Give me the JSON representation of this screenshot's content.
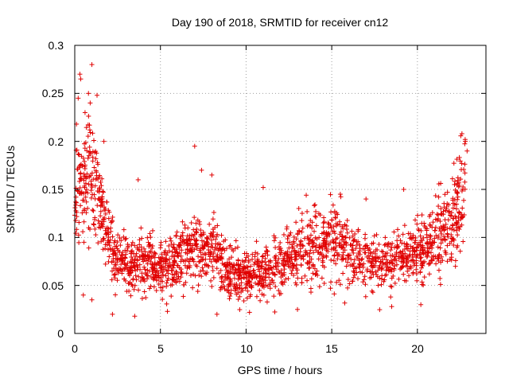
{
  "chart_data": {
    "type": "scatter",
    "title": "Day 190 of 2018, SRMTID for receiver cn12",
    "xlabel": "GPS time / hours",
    "ylabel": "SRMTID / TECUs",
    "xlim": [
      0,
      24
    ],
    "ylim": [
      0,
      0.3
    ],
    "xticks": [
      0,
      5,
      10,
      15,
      20
    ],
    "yticks": [
      0,
      0.05,
      0.1,
      0.15,
      0.2,
      0.25,
      0.3
    ],
    "xtick_labels": [
      "0",
      "5",
      "10",
      "15",
      "20"
    ],
    "ytick_labels": [
      "0",
      "0.05",
      "0.1",
      "0.15",
      "0.2",
      "0.25",
      "0.3"
    ],
    "grid": true,
    "marker": "+",
    "color": "#e00000",
    "series": [
      {
        "name": "SRMTID cn12",
        "profile": [
          {
            "x": 0.0,
            "y": 0.135
          },
          {
            "x": 0.5,
            "y": 0.16
          },
          {
            "x": 1.0,
            "y": 0.165
          },
          {
            "x": 1.5,
            "y": 0.13
          },
          {
            "x": 2.0,
            "y": 0.1
          },
          {
            "x": 2.5,
            "y": 0.075
          },
          {
            "x": 3.0,
            "y": 0.07
          },
          {
            "x": 4.0,
            "y": 0.075
          },
          {
            "x": 5.0,
            "y": 0.065
          },
          {
            "x": 6.0,
            "y": 0.075
          },
          {
            "x": 7.0,
            "y": 0.09
          },
          {
            "x": 8.0,
            "y": 0.09
          },
          {
            "x": 9.0,
            "y": 0.065
          },
          {
            "x": 10.0,
            "y": 0.06
          },
          {
            "x": 11.0,
            "y": 0.065
          },
          {
            "x": 12.0,
            "y": 0.07
          },
          {
            "x": 13.0,
            "y": 0.08
          },
          {
            "x": 14.0,
            "y": 0.09
          },
          {
            "x": 15.0,
            "y": 0.1
          },
          {
            "x": 16.0,
            "y": 0.085
          },
          {
            "x": 17.0,
            "y": 0.075
          },
          {
            "x": 18.0,
            "y": 0.075
          },
          {
            "x": 19.0,
            "y": 0.08
          },
          {
            "x": 20.0,
            "y": 0.085
          },
          {
            "x": 21.0,
            "y": 0.095
          },
          {
            "x": 22.0,
            "y": 0.12
          },
          {
            "x": 22.8,
            "y": 0.145
          }
        ],
        "points": [
          {
            "x": 1.0,
            "y": 0.28
          },
          {
            "x": 0.3,
            "y": 0.27
          },
          {
            "x": 0.35,
            "y": 0.265
          },
          {
            "x": 0.8,
            "y": 0.25
          },
          {
            "x": 1.3,
            "y": 0.248
          },
          {
            "x": 0.2,
            "y": 0.245
          },
          {
            "x": 0.9,
            "y": 0.24
          },
          {
            "x": 0.6,
            "y": 0.23
          },
          {
            "x": 0.1,
            "y": 0.218
          },
          {
            "x": 1.7,
            "y": 0.2
          },
          {
            "x": 7.0,
            "y": 0.195
          },
          {
            "x": 22.6,
            "y": 0.208
          },
          {
            "x": 22.8,
            "y": 0.2
          },
          {
            "x": 22.9,
            "y": 0.19
          },
          {
            "x": 7.4,
            "y": 0.17
          },
          {
            "x": 8.0,
            "y": 0.165
          },
          {
            "x": 3.7,
            "y": 0.16
          },
          {
            "x": 11.0,
            "y": 0.152
          },
          {
            "x": 15.5,
            "y": 0.145
          },
          {
            "x": 17.0,
            "y": 0.14
          },
          {
            "x": 19.2,
            "y": 0.15
          },
          {
            "x": 0.5,
            "y": 0.04
          },
          {
            "x": 1.0,
            "y": 0.035
          },
          {
            "x": 2.2,
            "y": 0.02
          },
          {
            "x": 3.5,
            "y": 0.018
          },
          {
            "x": 8.3,
            "y": 0.02
          },
          {
            "x": 10.2,
            "y": 0.022
          },
          {
            "x": 13.0,
            "y": 0.025
          },
          {
            "x": 18.5,
            "y": 0.028
          },
          {
            "x": 20.2,
            "y": 0.03
          }
        ]
      }
    ]
  }
}
